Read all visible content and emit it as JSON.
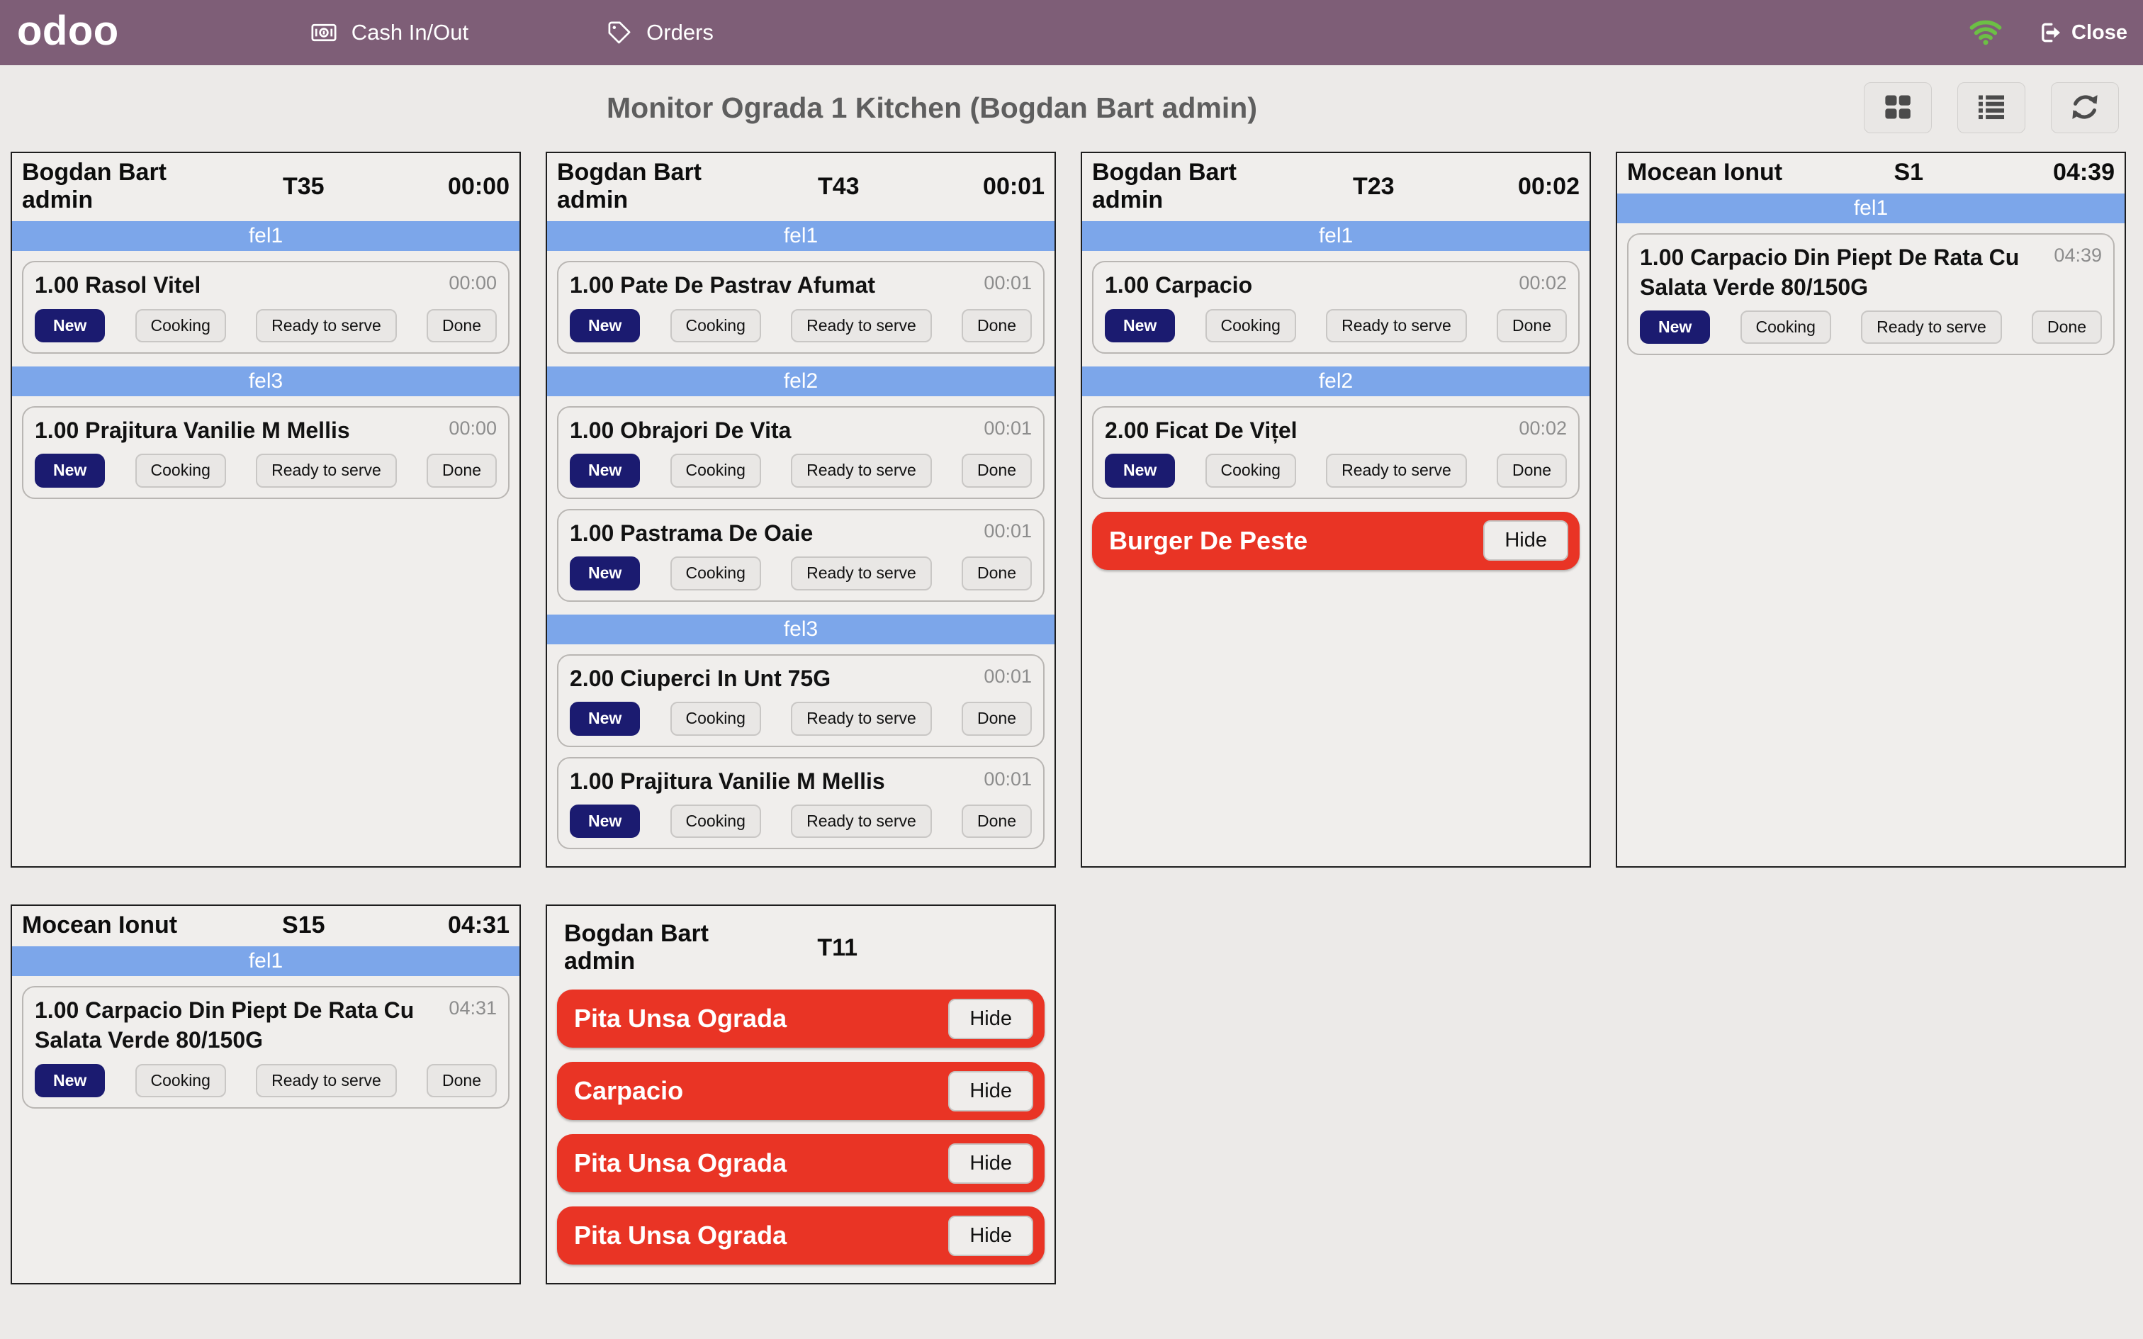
{
  "topbar": {
    "logo": "odoo",
    "nav": [
      {
        "label": "Cash In/Out",
        "icon": "cash-icon"
      },
      {
        "label": "Orders",
        "icon": "orders-icon"
      }
    ],
    "wifi_icon": "wifi-status-icon",
    "close_label": "Close"
  },
  "header": {
    "title": "Monitor Ograda 1 Kitchen (Bogdan Bart admin)",
    "view_buttons": [
      "grid-view",
      "list-view",
      "refresh"
    ]
  },
  "colors": {
    "topbar": "#7E5E77",
    "stage_band": "#7CA6EA",
    "status_active": "#1B1B70",
    "alert": "#E93425",
    "wifi": "#6CBF45"
  },
  "stage_buttons": [
    "New",
    "Cooking",
    "Ready to serve",
    "Done"
  ],
  "cards": [
    {
      "customer": "Bogdan Bart admin",
      "table": "T35",
      "time": "00:00",
      "sections": [
        {
          "stage": "fel1",
          "items": [
            {
              "name": "1.00 Rasol Vitel",
              "time": "00:00",
              "status": "New"
            }
          ]
        },
        {
          "stage": "fel3",
          "items": [
            {
              "name": "1.00 Prajitura Vanilie M Mellis",
              "time": "00:00",
              "status": "New"
            }
          ]
        }
      ],
      "alerts": []
    },
    {
      "customer": "Bogdan Bart admin",
      "table": "T43",
      "time": "00:01",
      "sections": [
        {
          "stage": "fel1",
          "items": [
            {
              "name": "1.00 Pate De Pastrav Afumat",
              "time": "00:01",
              "status": "New"
            }
          ]
        },
        {
          "stage": "fel2",
          "items": [
            {
              "name": "1.00 Obrajori De Vita",
              "time": "00:01",
              "status": "New"
            },
            {
              "name": "1.00 Pastrama De Oaie",
              "time": "00:01",
              "status": "New"
            }
          ]
        },
        {
          "stage": "fel3",
          "items": [
            {
              "name": "2.00 Ciuperci In Unt 75G",
              "time": "00:01",
              "status": "New"
            },
            {
              "name": "1.00 Prajitura Vanilie M Mellis",
              "time": "00:01",
              "status": "New"
            }
          ]
        }
      ],
      "alerts": []
    },
    {
      "customer": "Bogdan Bart admin",
      "table": "T23",
      "time": "00:02",
      "sections": [
        {
          "stage": "fel1",
          "items": [
            {
              "name": "1.00 Carpacio",
              "time": "00:02",
              "status": "New"
            }
          ]
        },
        {
          "stage": "fel2",
          "items": [
            {
              "name": "2.00 Ficat De Vițel",
              "time": "00:02",
              "status": "New"
            }
          ]
        }
      ],
      "alerts": [
        {
          "name": "Burger De Peste",
          "action": "Hide"
        }
      ]
    },
    {
      "customer": "Mocean Ionut",
      "table": "S1",
      "time": "04:39",
      "sections": [
        {
          "stage": "fel1",
          "items": [
            {
              "name": "1.00 Carpacio Din Piept De Rata Cu Salata Verde 80/150G",
              "time": "04:39",
              "status": "New"
            }
          ]
        }
      ],
      "alerts": []
    },
    {
      "customer": "Mocean Ionut",
      "table": "S15",
      "time": "04:31",
      "sections": [
        {
          "stage": "fel1",
          "items": [
            {
              "name": "1.00 Carpacio Din Piept De Rata Cu Salata Verde 80/150G",
              "time": "04:31",
              "status": "New"
            }
          ]
        }
      ],
      "alerts": []
    },
    {
      "customer": "Bogdan Bart admin",
      "table": "T11",
      "time": "",
      "sections": [],
      "alerts": [
        {
          "name": "Pita Unsa Ograda",
          "action": "Hide"
        },
        {
          "name": "Carpacio",
          "action": "Hide"
        },
        {
          "name": "Pita Unsa Ograda",
          "action": "Hide"
        },
        {
          "name": "Pita Unsa Ograda",
          "action": "Hide"
        }
      ]
    }
  ]
}
